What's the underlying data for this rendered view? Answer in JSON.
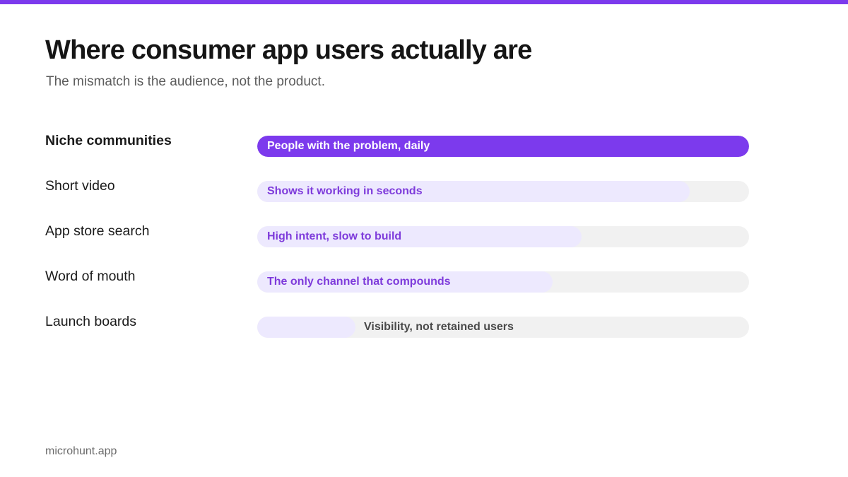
{
  "header": {
    "title": "Where consumer app users actually are",
    "subtitle": "The mismatch is the audience, not the product."
  },
  "footer": {
    "brand": "microhunt.app"
  },
  "colors": {
    "accent": "#7c3aed",
    "fill_light": "#ede9fe",
    "track": "#f1f1f1",
    "label_on_dark": "#ffffff",
    "label_on_light": "#7e3bdb",
    "label_outside": "#4a4a4a"
  },
  "chart_data": {
    "type": "bar",
    "orientation": "horizontal",
    "value_unit": "fraction of full bar",
    "categories": [
      "Niche communities",
      "Short video",
      "App store search",
      "Word of mouth",
      "Launch boards"
    ],
    "values": [
      1.0,
      0.88,
      0.66,
      0.6,
      0.2
    ],
    "annotations": [
      "People with the problem, daily",
      "Shows it working in seconds",
      "High intent, slow to build",
      "The only channel that compounds",
      "Visibility, not retained users"
    ],
    "highlighted": [
      true,
      false,
      false,
      false,
      false
    ],
    "xlim": [
      0,
      1
    ]
  }
}
